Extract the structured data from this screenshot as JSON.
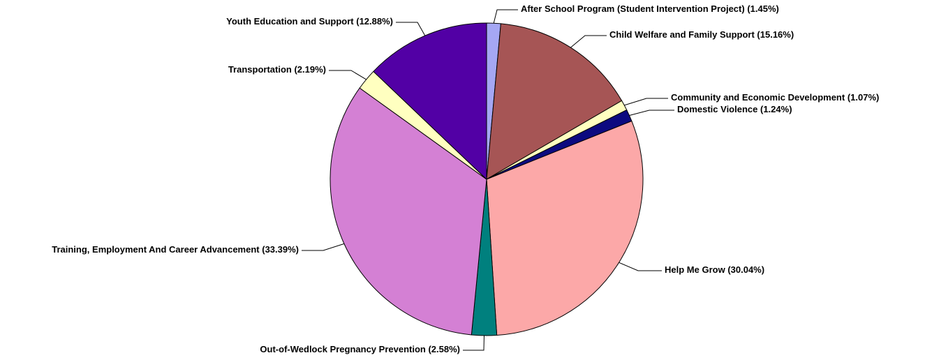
{
  "chart_data": {
    "type": "pie",
    "start": "12 o'clock",
    "direction": "clockwise",
    "legend": "none",
    "slices": [
      {
        "label": "After School Program (Student Intervention Project)",
        "value": 1.45,
        "value_text": "(1.45%)",
        "color": "#a5a7f4"
      },
      {
        "label": "Child Welfare and Family Support",
        "value": 15.16,
        "value_text": "(15.16%)",
        "color": "#a65555"
      },
      {
        "label": "Community and Economic Development",
        "value": 1.07,
        "value_text": "(1.07%)",
        "color": "#ffffc0"
      },
      {
        "label": "Domestic Violence",
        "value": 1.24,
        "value_text": "(1.24%)",
        "color": "#0c0a80"
      },
      {
        "label": "Help Me Grow",
        "value": 30.04,
        "value_text": "(30.04%)",
        "color": "#fca8a8"
      },
      {
        "label": "Out-of-Wedlock Pregnancy Prevention",
        "value": 2.58,
        "value_text": "(2.58%)",
        "color": "#00807e"
      },
      {
        "label": "Training, Employment And Career Advancement",
        "value": 33.39,
        "value_text": "(33.39%)",
        "color": "#d480d4"
      },
      {
        "label": "Transportation",
        "value": 2.19,
        "value_text": "(2.19%)",
        "color": "#ffffc0"
      },
      {
        "label": "Youth Education and Support",
        "value": 12.88,
        "value_text": "(12.88%)",
        "color": "#5200a5"
      }
    ]
  }
}
